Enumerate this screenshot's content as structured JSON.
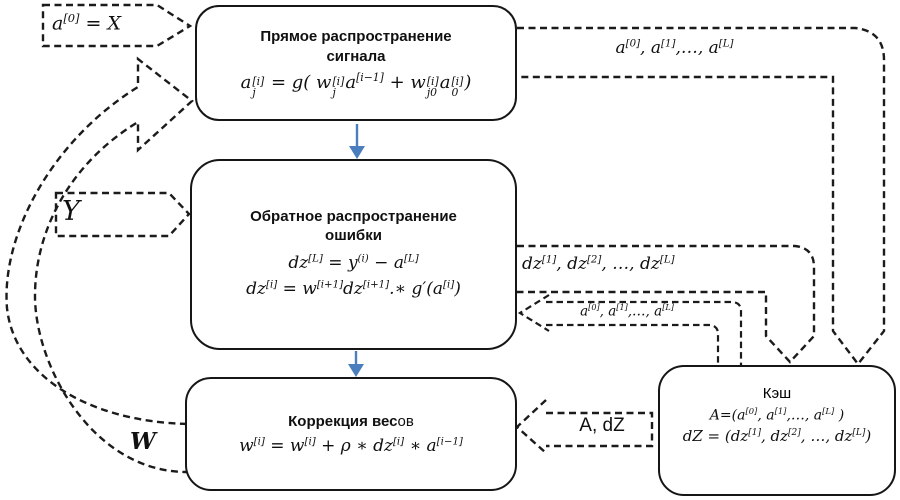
{
  "diagram": {
    "boxes": {
      "forward": {
        "title_line1": "Прямое распространение",
        "title_line2": "сигнала",
        "formula": "a_{j}^{[i]} = g( w_{j}^{[i]}a^{[i−1]} + w_{j0}^{[i]}a_{0}^{[i]})"
      },
      "backward": {
        "title_line1": "Обратное распространение",
        "title_line2": "ошибки",
        "formula1": "dz^{[L]} = y^{(i)} − a^{[L]}",
        "formula2": "dz^{[i]} = w^{[i+1]}dz^{[i+1]}.∗ g′(a^{[i]})"
      },
      "weights": {
        "title_bold": "Коррекция вес",
        "title_rest": "ов",
        "formula": "w^{[i]} = w^{[i]} + ρ ∗ dz^{[i]} ∗ a^{[i−1]}"
      },
      "cache": {
        "title": "Кэш",
        "line_a": "A=(a^{[0]}, a^{[1]},…, a^{[L]} )",
        "line_dz": "dZ = (dz^{[1]}, dz^{[2]}, …, dz^{[L]})"
      }
    },
    "inputs": {
      "x": "a^{[0]} = X",
      "y": "Y"
    },
    "edge_labels": {
      "a_to_cache": "a^{[0]}, a^{[1]},…, a^{[L]}",
      "dz_to_cache": "dz^{[1]}, dz^{[2]}, …, dz^{[L]}",
      "a_from_cache": "a^{[0]}, a^{[1]},…, a^{[L]}",
      "adz_from_cache": "A, dZ",
      "w_feedback": "W"
    },
    "colors": {
      "stroke": "#1b1b1b",
      "arrow_blue": "#4a7ebc",
      "background": "#ffffff"
    }
  }
}
